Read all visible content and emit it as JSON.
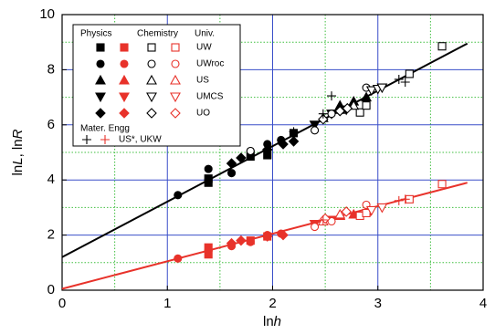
{
  "chart_data": {
    "type": "scatter",
    "xlabel": [
      "ln",
      "h"
    ],
    "ylabel": [
      "ln",
      "L",
      ", ln",
      "R"
    ],
    "xlim": [
      0,
      4
    ],
    "ylim": [
      0,
      10
    ],
    "xticks": [
      0,
      1,
      2,
      3,
      4
    ],
    "yticks": [
      0,
      2,
      4,
      6,
      8,
      10
    ],
    "minor_xticks": [
      0.5,
      1.5,
      2.5,
      3.5
    ],
    "minor_yticks": [
      1,
      3,
      5,
      7,
      9
    ],
    "grid": true,
    "grid_color": "#3a4fc9",
    "minor_grid_color": "#3fbf3f",
    "legend_position": "upper left",
    "legend": {
      "column_headers": [
        "Physics",
        "Chemistry",
        "Univ."
      ],
      "footer_title": "Mater. Engg"
    },
    "fit_lines": [
      {
        "color": "#000000",
        "x": [
          0,
          3.85
        ],
        "values": [
          1.2,
          8.95
        ]
      },
      {
        "color": "#e8322a",
        "x": [
          0,
          3.85
        ],
        "values": [
          0.05,
          3.9
        ]
      }
    ],
    "series": [
      {
        "name": "UW",
        "marker": "square",
        "filled": true,
        "color": "#000000",
        "x": [
          1.39,
          1.39,
          1.79,
          1.95,
          2.2
        ],
        "values": [
          3.9,
          4.05,
          4.85,
          4.9,
          5.7
        ]
      },
      {
        "name": "UWroc",
        "marker": "circle",
        "filled": true,
        "color": "#000000",
        "x": [
          1.1,
          1.39,
          1.61,
          1.79,
          1.95,
          2.08
        ],
        "values": [
          3.45,
          4.4,
          4.25,
          5.05,
          5.3,
          5.45
        ]
      },
      {
        "name": "US",
        "marker": "triangle",
        "filled": true,
        "color": "#000000",
        "x": [
          2.64,
          2.77,
          2.89
        ],
        "values": [
          6.7,
          6.85,
          7.0
        ]
      },
      {
        "name": "UMCS",
        "marker": "down",
        "filled": true,
        "color": "#000000",
        "x": [
          2.4,
          2.56,
          2.7
        ],
        "values": [
          6.0,
          6.4,
          6.55
        ]
      },
      {
        "name": "UO",
        "marker": "diamond",
        "filled": true,
        "color": "#000000",
        "x": [
          1.61,
          1.7,
          1.95,
          2.1,
          2.2
        ],
        "values": [
          4.6,
          4.8,
          5.1,
          5.3,
          5.4
        ]
      },
      {
        "name": "UW",
        "marker": "square",
        "filled": true,
        "color": "#e8322a",
        "x": [
          1.39,
          1.39,
          1.79,
          1.95
        ],
        "values": [
          1.3,
          1.55,
          1.8,
          1.95
        ]
      },
      {
        "name": "UWroc",
        "marker": "circle",
        "filled": true,
        "color": "#e8322a",
        "x": [
          1.1,
          1.39,
          1.61,
          1.79,
          1.95,
          2.08
        ],
        "values": [
          1.15,
          1.45,
          1.6,
          1.75,
          2.0,
          2.05
        ]
      },
      {
        "name": "US",
        "marker": "triangle",
        "filled": true,
        "color": "#e8322a",
        "x": [
          2.64,
          2.77,
          2.89
        ],
        "values": [
          2.7,
          2.75,
          2.85
        ]
      },
      {
        "name": "UMCS",
        "marker": "down",
        "filled": true,
        "color": "#e8322a",
        "x": [
          2.4,
          2.56
        ],
        "values": [
          2.4,
          2.55
        ]
      },
      {
        "name": "UO",
        "marker": "diamond",
        "filled": true,
        "color": "#e8322a",
        "x": [
          1.61,
          1.7,
          1.95,
          2.1
        ],
        "values": [
          1.7,
          1.8,
          1.95,
          2.0
        ]
      },
      {
        "name": "UW",
        "marker": "square",
        "filled": false,
        "color": "#000000",
        "x": [
          2.83,
          2.89,
          3.3,
          3.61
        ],
        "values": [
          6.45,
          6.7,
          7.85,
          8.85
        ]
      },
      {
        "name": "UWroc",
        "marker": "circle",
        "filled": false,
        "color": "#000000",
        "x": [
          1.79,
          2.4,
          2.56,
          2.89
        ],
        "values": [
          5.05,
          5.8,
          6.4,
          7.35
        ]
      },
      {
        "name": "US",
        "marker": "triangle",
        "filled": false,
        "color": "#000000",
        "x": [
          2.48,
          2.64,
          2.77
        ],
        "values": [
          6.25,
          6.55,
          6.7
        ]
      },
      {
        "name": "UMCS",
        "marker": "down",
        "filled": false,
        "color": "#000000",
        "x": [
          2.94,
          3.0,
          3.04
        ],
        "values": [
          7.25,
          7.3,
          7.35
        ]
      },
      {
        "name": "UO",
        "marker": "diamond",
        "filled": false,
        "color": "#000000",
        "x": [
          2.48,
          2.64,
          2.71
        ],
        "values": [
          6.2,
          6.5,
          6.6
        ]
      },
      {
        "name": "UW",
        "marker": "square",
        "filled": false,
        "color": "#e8322a",
        "x": [
          2.83,
          2.89,
          3.3,
          3.61
        ],
        "values": [
          2.7,
          2.8,
          3.3,
          3.85
        ]
      },
      {
        "name": "UWroc",
        "marker": "circle",
        "filled": false,
        "color": "#e8322a",
        "x": [
          2.4,
          2.56,
          2.89
        ],
        "values": [
          2.3,
          2.5,
          3.1
        ]
      },
      {
        "name": "US",
        "marker": "triangle",
        "filled": false,
        "color": "#e8322a",
        "x": [
          2.48,
          2.64
        ],
        "values": [
          2.5,
          2.75
        ]
      },
      {
        "name": "UMCS",
        "marker": "down",
        "filled": false,
        "color": "#e8322a",
        "x": [
          2.94,
          3.04
        ],
        "values": [
          2.9,
          3.0
        ]
      },
      {
        "name": "UO",
        "marker": "diamond",
        "filled": false,
        "color": "#e8322a",
        "x": [
          2.5,
          2.7
        ],
        "values": [
          2.6,
          2.85
        ]
      },
      {
        "name": "US*, UKW",
        "marker": "plus",
        "filled": false,
        "color": "#000000",
        "x": [
          2.2,
          2.48,
          2.56,
          3.2,
          3.26
        ],
        "values": [
          5.75,
          6.4,
          7.05,
          7.65,
          7.55
        ]
      },
      {
        "name": "US*, UKW",
        "marker": "plus",
        "filled": false,
        "color": "#e8322a",
        "x": [
          2.48,
          3.2,
          3.26
        ],
        "values": [
          2.55,
          3.25,
          3.3
        ]
      }
    ]
  }
}
